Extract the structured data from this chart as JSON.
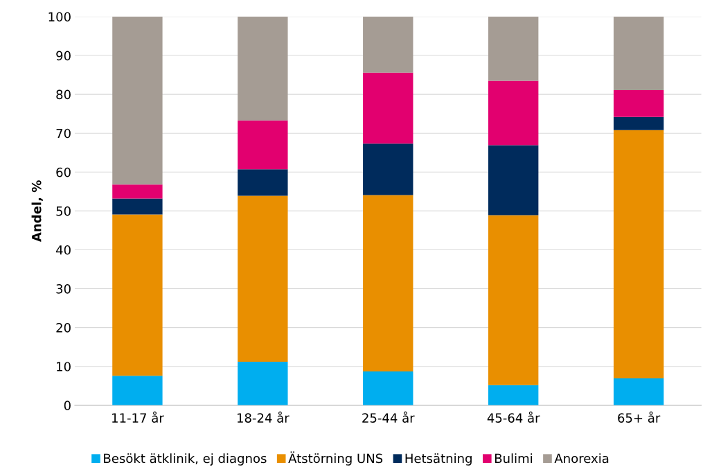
{
  "chart_data": {
    "type": "bar",
    "stacked": true,
    "ylabel": "Andel, %",
    "categories": [
      "11-17 år",
      "18-24 år",
      "25-44 år",
      "45-64 år",
      "65+ år"
    ],
    "series": [
      {
        "name": "Besökt ätklinik, ej diagnos",
        "color": "#00aeef",
        "values": [
          7.6,
          11.2,
          8.7,
          5.2,
          6.9
        ]
      },
      {
        "name": "Ätstörning UNS",
        "color": "#e98f00",
        "values": [
          41.5,
          42.7,
          45.4,
          43.7,
          63.9
        ]
      },
      {
        "name": "Hetsätning",
        "color": "#002b5c",
        "values": [
          4.1,
          6.8,
          13.2,
          18.0,
          3.4
        ]
      },
      {
        "name": "Bulimi",
        "color": "#e2006f",
        "values": [
          3.6,
          12.6,
          18.3,
          16.6,
          6.9
        ]
      },
      {
        "name": "Anorexia",
        "color": "#a59c94",
        "values": [
          43.2,
          26.7,
          14.4,
          16.5,
          18.9
        ]
      }
    ],
    "ylim": [
      0,
      100
    ],
    "yticks": [
      0,
      10,
      20,
      30,
      40,
      50,
      60,
      70,
      80,
      90,
      100
    ],
    "grid": "y",
    "legend": "bottom"
  }
}
